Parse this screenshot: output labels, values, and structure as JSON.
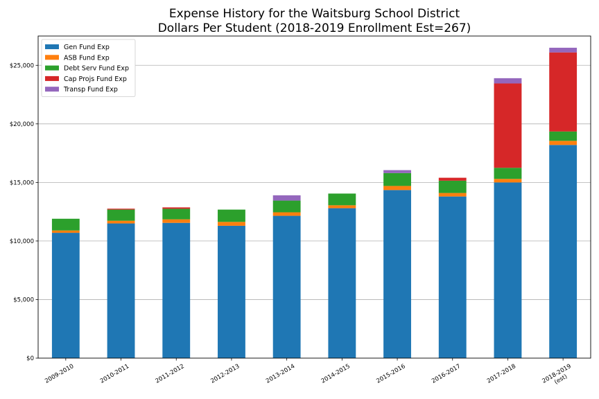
{
  "chart_data": {
    "type": "bar",
    "stacked": true,
    "title": [
      "Expense History for the Waitsburg School District",
      "Dollars Per Student (2018-2019 Enrollment Est=267)"
    ],
    "xlabel": "",
    "ylabel": "",
    "ylim": [
      0,
      27500
    ],
    "yticks": [
      0,
      5000,
      10000,
      15000,
      20000,
      25000
    ],
    "ytick_labels": [
      "$0",
      "$5,000",
      "$10,000",
      "$15,000",
      "$20,000",
      "$25,000"
    ],
    "grid": "horizontal",
    "legend_position": "top-left",
    "categories": [
      [
        "2009-2010"
      ],
      [
        "2010-2011"
      ],
      [
        "2011-2012"
      ],
      [
        "2012-2013"
      ],
      [
        "2013-2014"
      ],
      [
        "2014-2015"
      ],
      [
        "2015-2016"
      ],
      [
        "2016-2017"
      ],
      [
        "2017-2018"
      ],
      [
        "2018-2019",
        "(est)"
      ]
    ],
    "series": [
      {
        "name": "Gen Fund Exp",
        "color": "#1f77b4",
        "values": [
          10700,
          11500,
          11550,
          11300,
          12150,
          12800,
          14350,
          13800,
          15000,
          18200
        ]
      },
      {
        "name": "ASB Fund Exp",
        "color": "#ff7f0e",
        "values": [
          200,
          230,
          300,
          330,
          300,
          250,
          350,
          300,
          300,
          350
        ]
      },
      {
        "name": "Debt Serv Fund Exp",
        "color": "#2ca02c",
        "values": [
          1000,
          950,
          900,
          1050,
          1000,
          1000,
          1100,
          1050,
          950,
          800
        ]
      },
      {
        "name": "Cap Projs Fund Exp",
        "color": "#d62728",
        "values": [
          0,
          80,
          120,
          0,
          0,
          0,
          0,
          250,
          7200,
          6750
        ]
      },
      {
        "name": "Transp Fund Exp",
        "color": "#9467bd",
        "values": [
          0,
          0,
          0,
          0,
          450,
          0,
          250,
          0,
          450,
          400
        ]
      }
    ]
  }
}
